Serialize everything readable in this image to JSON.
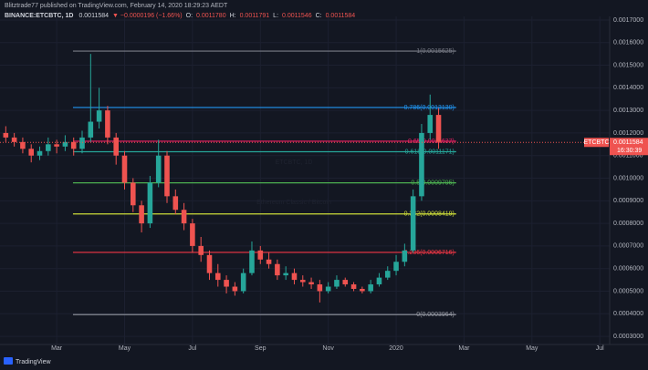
{
  "header": {
    "published": "Blitztrade77 published on TradingView.com, February 14, 2020 18:29:23 AEDT",
    "symbol": "BINANCE:ETCBTC, 1D",
    "price": "0.0011584",
    "change": "▼ −0.0000196 (−1.66%)",
    "ohlc": [
      {
        "key": "O:",
        "val": "0.0011780"
      },
      {
        "key": "H:",
        "val": "0.0011791"
      },
      {
        "key": "L:",
        "val": "0.0011546"
      },
      {
        "key": "C:",
        "val": "0.0011584"
      }
    ]
  },
  "watermark": {
    "symbol": "ETCBTC, 1D",
    "name": "Ethereum Classic / Bitcoin"
  },
  "footer": "TradingView",
  "chart_data": {
    "type": "candlestick",
    "x": [
      0.5,
      0.75,
      1.0,
      1.25,
      1.5,
      1.75,
      2.0,
      2.25,
      2.5,
      2.75,
      3.0,
      3.25,
      3.5,
      3.75,
      4.0,
      4.25,
      4.5,
      4.75,
      5.0,
      5.25,
      5.5,
      5.75,
      6.0,
      6.25,
      6.5,
      6.75,
      7.0,
      7.25,
      7.5,
      7.75,
      8.0,
      8.25,
      8.5,
      8.75,
      9.0,
      9.25,
      9.5,
      9.75,
      10.0,
      10.25,
      10.5,
      10.75,
      11.0,
      11.25,
      11.5,
      11.75,
      12.0,
      12.25,
      12.5,
      12.75,
      13.0,
      13.25
    ],
    "open": [
      0.0012,
      0.00118,
      0.00116,
      0.00113,
      0.0011,
      0.00112,
      0.00115,
      0.00114,
      0.00116,
      0.00113,
      0.00118,
      0.00125,
      0.0013,
      0.00118,
      0.0011,
      0.00098,
      0.00088,
      0.0008,
      0.00098,
      0.0011,
      0.00092,
      0.00086,
      0.0008,
      0.0007,
      0.00066,
      0.00058,
      0.00055,
      0.00052,
      0.0005,
      0.00058,
      0.00068,
      0.00064,
      0.00062,
      0.00057,
      0.00058,
      0.00055,
      0.00054,
      0.00053,
      0.0005,
      0.00052,
      0.00055,
      0.00053,
      0.00051,
      0.0005,
      0.00053,
      0.00056,
      0.00059,
      0.00063,
      0.00068,
      0.00092,
      0.0012,
      0.00128
    ],
    "high": [
      0.00123,
      0.0012,
      0.00118,
      0.00115,
      0.00114,
      0.00118,
      0.00117,
      0.00119,
      0.00118,
      0.00121,
      0.00155,
      0.0014,
      0.00132,
      0.0012,
      0.00112,
      0.001,
      0.0009,
      0.00101,
      0.00117,
      0.00112,
      0.00095,
      0.00089,
      0.00082,
      0.00074,
      0.00068,
      0.00062,
      0.00057,
      0.00054,
      0.0006,
      0.00072,
      0.0007,
      0.00067,
      0.00064,
      0.00061,
      0.0006,
      0.00057,
      0.00056,
      0.00055,
      0.00054,
      0.00057,
      0.00056,
      0.00054,
      0.00052,
      0.00055,
      0.00058,
      0.00061,
      0.00066,
      0.00071,
      0.00095,
      0.00124,
      0.00137,
      0.00131
    ],
    "low": [
      0.00116,
      0.00114,
      0.00111,
      0.00107,
      0.00108,
      0.0011,
      0.00111,
      0.00112,
      0.0011,
      0.00111,
      0.00116,
      0.00122,
      0.00115,
      0.00106,
      0.00095,
      0.00085,
      0.00076,
      0.00078,
      0.00096,
      0.00089,
      0.00084,
      0.00077,
      0.00067,
      0.00063,
      0.00055,
      0.00052,
      0.00049,
      0.00048,
      0.00049,
      0.00057,
      0.00062,
      0.0006,
      0.00055,
      0.00055,
      0.00053,
      0.00052,
      0.00051,
      0.00045,
      0.00049,
      0.00051,
      0.00052,
      0.0005,
      0.00049,
      0.00049,
      0.00052,
      0.00055,
      0.00057,
      0.00061,
      0.00067,
      0.0009,
      0.00117,
      0.00113
    ],
    "close": [
      0.00118,
      0.00116,
      0.00113,
      0.0011,
      0.00112,
      0.00115,
      0.00114,
      0.00116,
      0.00113,
      0.00118,
      0.00125,
      0.0013,
      0.00118,
      0.0011,
      0.00098,
      0.00088,
      0.0008,
      0.00098,
      0.0011,
      0.00092,
      0.00086,
      0.0008,
      0.0007,
      0.00066,
      0.00058,
      0.00055,
      0.00052,
      0.0005,
      0.00058,
      0.00068,
      0.00064,
      0.00062,
      0.00057,
      0.00058,
      0.00055,
      0.00054,
      0.00053,
      0.0005,
      0.00052,
      0.00055,
      0.00053,
      0.00051,
      0.0005,
      0.00053,
      0.00056,
      0.00059,
      0.00063,
      0.00068,
      0.00092,
      0.0012,
      0.00128,
      0.00116
    ],
    "up_color": "#26a69a",
    "down_color": "#ef5350",
    "xlim": [
      0.33,
      18.29
    ],
    "xticks": [
      {
        "value": 2,
        "label": "Mar"
      },
      {
        "value": 4,
        "label": "May"
      },
      {
        "value": 6,
        "label": "Jul"
      },
      {
        "value": 8,
        "label": "Sep"
      },
      {
        "value": 10,
        "label": "Nov"
      },
      {
        "value": 12,
        "label": "2020"
      },
      {
        "value": 14,
        "label": "Mar"
      },
      {
        "value": 16,
        "label": "May"
      },
      {
        "value": 18,
        "label": "Jul"
      }
    ],
    "ylim": [
      0.000264,
      0.001716
    ],
    "yticks": [
      {
        "value": 0.0003,
        "label": "0.0003000"
      },
      {
        "value": 0.0004,
        "label": "0.0004000"
      },
      {
        "value": 0.0005,
        "label": "0.0005000"
      },
      {
        "value": 0.0006,
        "label": "0.0006000"
      },
      {
        "value": 0.0007,
        "label": "0.0007000"
      },
      {
        "value": 0.0008,
        "label": "0.0008000"
      },
      {
        "value": 0.0009,
        "label": "0.0009000"
      },
      {
        "value": 0.001,
        "label": "0.0010000"
      },
      {
        "value": 0.0011,
        "label": "0.0011000"
      },
      {
        "value": 0.0012,
        "label": "0.0012000"
      },
      {
        "value": 0.0013,
        "label": "0.0013000"
      },
      {
        "value": 0.0014,
        "label": "0.0014000"
      },
      {
        "value": 0.0015,
        "label": "0.0015000"
      },
      {
        "value": 0.0016,
        "label": "0.0016000"
      },
      {
        "value": 0.0017,
        "label": "0.0017000"
      }
    ],
    "grid": true,
    "fib_x": [
      2.48,
      13.77
    ],
    "fib_levels": [
      {
        "label": "1(0.0015625)",
        "value": 0.0015625,
        "color": "#787b86"
      },
      {
        "label": "0.786(0.0013130)",
        "value": 0.001313,
        "color": "#2196f3"
      },
      {
        "label": "0.65(0.0011637)",
        "value": 0.0011637,
        "color": "#e91e63"
      },
      {
        "label": "0.618(0.0011171)",
        "value": 0.0011171,
        "color": "#26a69a"
      },
      {
        "label": "0.5(0.0009795)",
        "value": 0.0009795,
        "color": "#4caf50"
      },
      {
        "label": "0.382(0.0008419)",
        "value": 0.0008419,
        "color": "#cddc39"
      },
      {
        "label": "0.236(0.0006716)",
        "value": 0.0006716,
        "color": "#f23645"
      },
      {
        "label": "0(0.0003964)",
        "value": 0.0003964,
        "color": "#9598a1"
      }
    ],
    "last_price": {
      "value": 0.0011584,
      "label": "0.0011584",
      "symbol": "ETCBTC",
      "countdown": "16:30:39",
      "color": "#ef5350"
    }
  }
}
